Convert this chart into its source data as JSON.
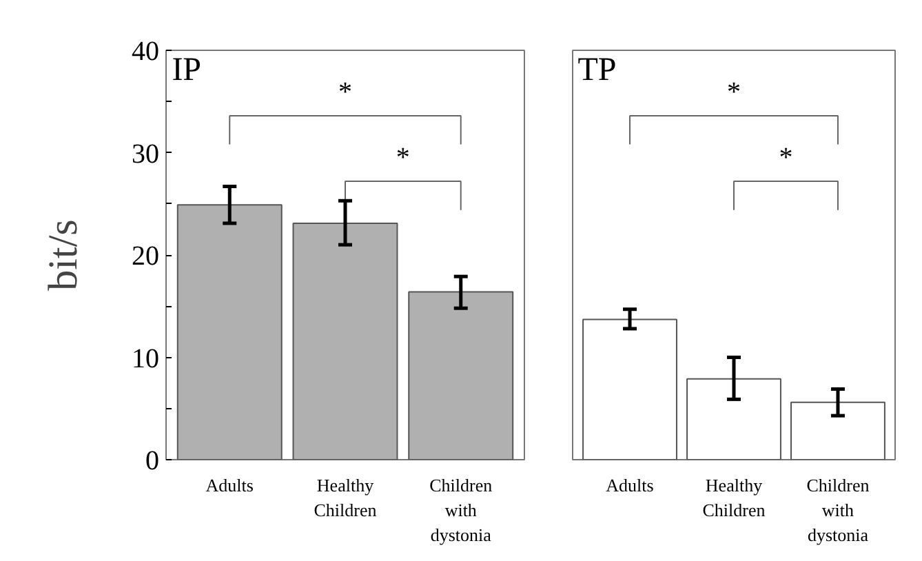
{
  "chart_data": [
    {
      "type": "bar",
      "title": "IP",
      "ylabel": "bit/s",
      "categories": [
        "Adults",
        "Healthy Children",
        "Children with dystonia"
      ],
      "values": [
        24.9,
        23.1,
        16.4
      ],
      "color": "#b0b0b0",
      "errors": [
        [
          23.1,
          26.7
        ],
        [
          21.0,
          25.3
        ],
        [
          14.8,
          17.9
        ]
      ],
      "ylim": [
        0,
        40
      ],
      "yticks": [
        0,
        {
          "value": 5,
          "label": null
        },
        10,
        {
          "value": 15,
          "label": null
        },
        20,
        {
          "value": 25,
          "label": null
        },
        30,
        {
          "value": 35,
          "label": null
        },
        40
      ],
      "grid": false,
      "annotations": [
        "*",
        "*"
      ]
    },
    {
      "type": "bar",
      "title": "TP",
      "categories": [
        "Adults",
        "Healthy Children",
        "Children with dystonia"
      ],
      "values": [
        13.7,
        7.9,
        5.6
      ],
      "color": "#ffffff",
      "errors": [
        [
          12.8,
          14.7
        ],
        [
          5.9,
          10.0
        ],
        [
          4.3,
          6.9
        ]
      ],
      "ylim": [
        0,
        40
      ],
      "tick_labels": "x",
      "grid": false,
      "annotations": [
        "*",
        "*"
      ]
    }
  ]
}
